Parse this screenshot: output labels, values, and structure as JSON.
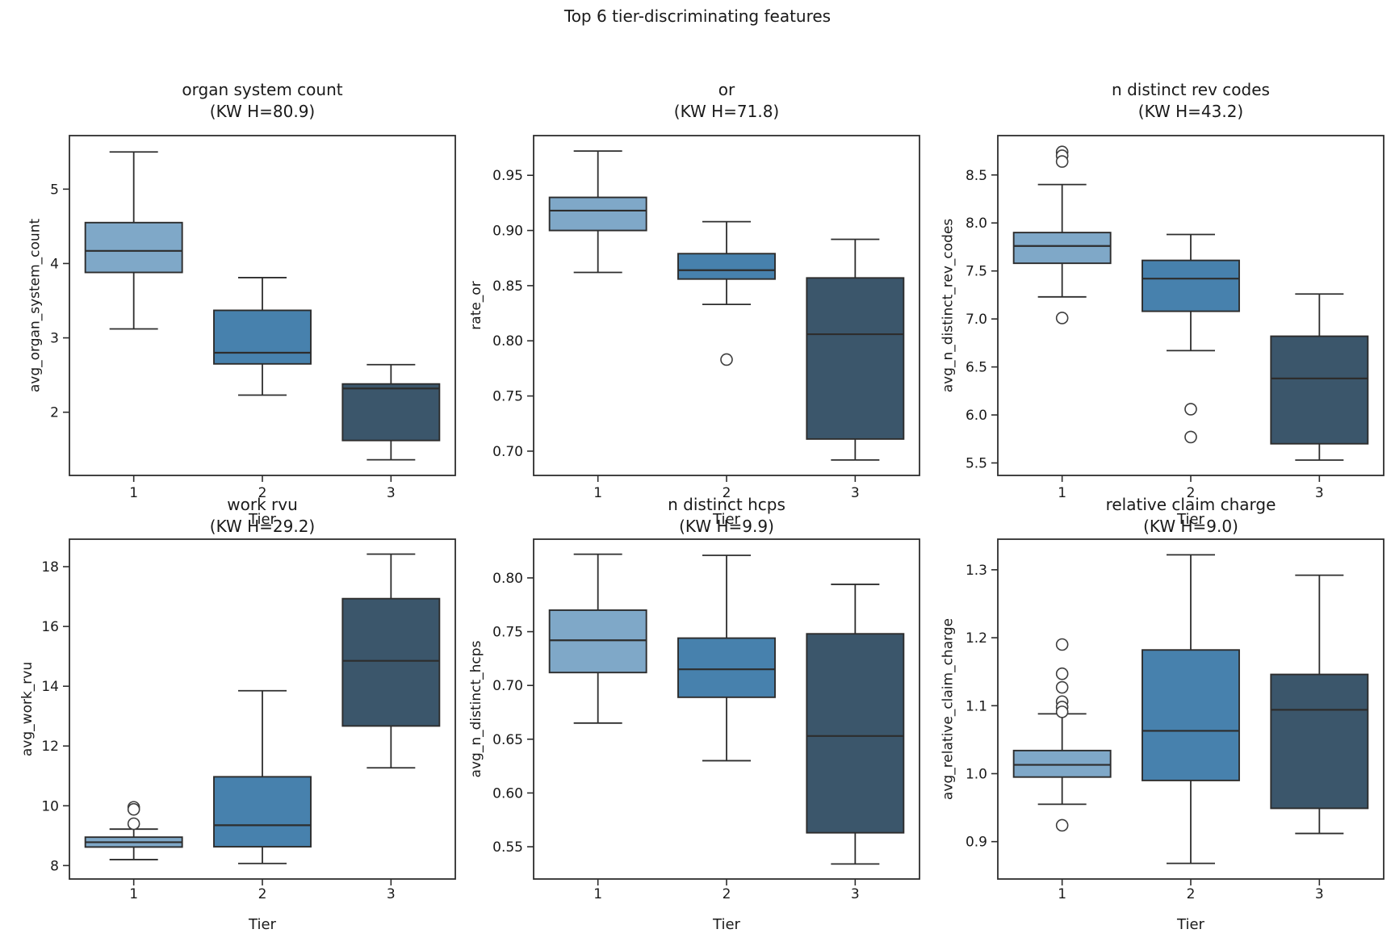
{
  "figure": {
    "suptitle": "Top 6 tier-discriminating features",
    "xlabel": "Tier",
    "categories": [
      "1",
      "2",
      "3"
    ],
    "tier_colors": [
      "#7fa8c8",
      "#4781ad",
      "#3b566b"
    ],
    "line_color": "#2d2d2d",
    "text_color": "#1a1a1a",
    "background_color": "#ffffff"
  },
  "chart_data": [
    {
      "type": "box",
      "title": "organ system count",
      "subtitle": "(KW H=80.9)",
      "kw_h": 80.9,
      "xlabel": "Tier",
      "ylabel": "avg_organ_system_count",
      "categories": [
        "1",
        "2",
        "3"
      ],
      "ylim": [
        1.15,
        5.72
      ],
      "yticks": [
        2,
        3,
        4,
        5
      ],
      "ytick_labels": [
        "2",
        "3",
        "4",
        "5"
      ],
      "boxes": [
        {
          "tier": "1",
          "whislo": 3.12,
          "q1": 3.88,
          "med": 4.17,
          "q3": 4.55,
          "whishi": 5.5,
          "outliers": []
        },
        {
          "tier": "2",
          "whislo": 2.23,
          "q1": 2.65,
          "med": 2.8,
          "q3": 3.37,
          "whishi": 3.81,
          "outliers": []
        },
        {
          "tier": "3",
          "whislo": 1.36,
          "q1": 1.62,
          "med": 2.32,
          "q3": 2.38,
          "whishi": 2.64,
          "outliers": []
        }
      ]
    },
    {
      "type": "box",
      "title": "or",
      "subtitle": "(KW H=71.8)",
      "kw_h": 71.8,
      "xlabel": "Tier",
      "ylabel": "rate_or",
      "categories": [
        "1",
        "2",
        "3"
      ],
      "ylim": [
        0.678,
        0.986
      ],
      "yticks": [
        0.7,
        0.75,
        0.8,
        0.85,
        0.9,
        0.95
      ],
      "ytick_labels": [
        "0.70",
        "0.75",
        "0.80",
        "0.85",
        "0.90",
        "0.95"
      ],
      "boxes": [
        {
          "tier": "1",
          "whislo": 0.862,
          "q1": 0.9,
          "med": 0.918,
          "q3": 0.93,
          "whishi": 0.972,
          "outliers": []
        },
        {
          "tier": "2",
          "whislo": 0.833,
          "q1": 0.856,
          "med": 0.864,
          "q3": 0.879,
          "whishi": 0.908,
          "outliers": [
            0.783
          ]
        },
        {
          "tier": "3",
          "whislo": 0.692,
          "q1": 0.711,
          "med": 0.806,
          "q3": 0.857,
          "whishi": 0.892,
          "outliers": []
        }
      ]
    },
    {
      "type": "box",
      "title": "n distinct rev codes",
      "subtitle": "(KW H=43.2)",
      "kw_h": 43.2,
      "xlabel": "Tier",
      "ylabel": "avg_n_distinct_rev_codes",
      "categories": [
        "1",
        "2",
        "3"
      ],
      "ylim": [
        5.37,
        8.91
      ],
      "yticks": [
        5.5,
        6.0,
        6.5,
        7.0,
        7.5,
        8.0,
        8.5
      ],
      "ytick_labels": [
        "5.5",
        "6.0",
        "6.5",
        "7.0",
        "7.5",
        "8.0",
        "8.5"
      ],
      "boxes": [
        {
          "tier": "1",
          "whislo": 7.23,
          "q1": 7.58,
          "med": 7.76,
          "q3": 7.9,
          "whishi": 8.4,
          "outliers": [
            8.74,
            8.7,
            8.64,
            7.01
          ]
        },
        {
          "tier": "2",
          "whislo": 6.67,
          "q1": 7.08,
          "med": 7.42,
          "q3": 7.61,
          "whishi": 7.88,
          "outliers": [
            6.06,
            5.77
          ]
        },
        {
          "tier": "3",
          "whislo": 5.53,
          "q1": 5.7,
          "med": 6.38,
          "q3": 6.82,
          "whishi": 7.26,
          "outliers": []
        }
      ]
    },
    {
      "type": "box",
      "title": "work rvu",
      "subtitle": "(KW H=29.2)",
      "kw_h": 29.2,
      "xlabel": "Tier",
      "ylabel": "avg_work_rvu",
      "categories": [
        "1",
        "2",
        "3"
      ],
      "ylim": [
        7.55,
        18.92
      ],
      "yticks": [
        8,
        10,
        12,
        14,
        16,
        18
      ],
      "ytick_labels": [
        "8",
        "10",
        "12",
        "14",
        "16",
        "18"
      ],
      "boxes": [
        {
          "tier": "1",
          "whislo": 8.2,
          "q1": 8.62,
          "med": 8.78,
          "q3": 8.95,
          "whishi": 9.22,
          "outliers": [
            9.95,
            9.88,
            9.4
          ]
        },
        {
          "tier": "2",
          "whislo": 8.07,
          "q1": 8.63,
          "med": 9.35,
          "q3": 10.97,
          "whishi": 13.85,
          "outliers": []
        },
        {
          "tier": "3",
          "whislo": 11.27,
          "q1": 12.67,
          "med": 14.85,
          "q3": 16.93,
          "whishi": 18.42,
          "outliers": []
        }
      ]
    },
    {
      "type": "box",
      "title": "n distinct hcps",
      "subtitle": "(KW H=9.9)",
      "kw_h": 9.9,
      "xlabel": "Tier",
      "ylabel": "avg_n_distinct_hcps",
      "categories": [
        "1",
        "2",
        "3"
      ],
      "ylim": [
        0.52,
        0.836
      ],
      "yticks": [
        0.55,
        0.6,
        0.65,
        0.7,
        0.75,
        0.8
      ],
      "ytick_labels": [
        "0.55",
        "0.60",
        "0.65",
        "0.70",
        "0.75",
        "0.80"
      ],
      "boxes": [
        {
          "tier": "1",
          "whislo": 0.665,
          "q1": 0.712,
          "med": 0.742,
          "q3": 0.77,
          "whishi": 0.822,
          "outliers": []
        },
        {
          "tier": "2",
          "whislo": 0.63,
          "q1": 0.689,
          "med": 0.715,
          "q3": 0.744,
          "whishi": 0.821,
          "outliers": []
        },
        {
          "tier": "3",
          "whislo": 0.534,
          "q1": 0.563,
          "med": 0.653,
          "q3": 0.748,
          "whishi": 0.794,
          "outliers": []
        }
      ]
    },
    {
      "type": "box",
      "title": "relative claim charge",
      "subtitle": "(KW H=9.0)",
      "kw_h": 9.0,
      "xlabel": "Tier",
      "ylabel": "avg_relative_claim_charge",
      "categories": [
        "1",
        "2",
        "3"
      ],
      "ylim": [
        0.845,
        1.345
      ],
      "yticks": [
        0.9,
        1.0,
        1.1,
        1.2,
        1.3
      ],
      "ytick_labels": [
        "0.9",
        "1.0",
        "1.1",
        "1.2",
        "1.3"
      ],
      "boxes": [
        {
          "tier": "1",
          "whislo": 0.955,
          "q1": 0.995,
          "med": 1.013,
          "q3": 1.034,
          "whishi": 1.088,
          "outliers": [
            1.19,
            1.147,
            1.127,
            1.106,
            1.098,
            1.091,
            0.924
          ]
        },
        {
          "tier": "2",
          "whislo": 0.868,
          "q1": 0.99,
          "med": 1.063,
          "q3": 1.182,
          "whishi": 1.322,
          "outliers": []
        },
        {
          "tier": "3",
          "whislo": 0.912,
          "q1": 0.949,
          "med": 1.094,
          "q3": 1.146,
          "whishi": 1.292,
          "outliers": []
        }
      ]
    }
  ]
}
